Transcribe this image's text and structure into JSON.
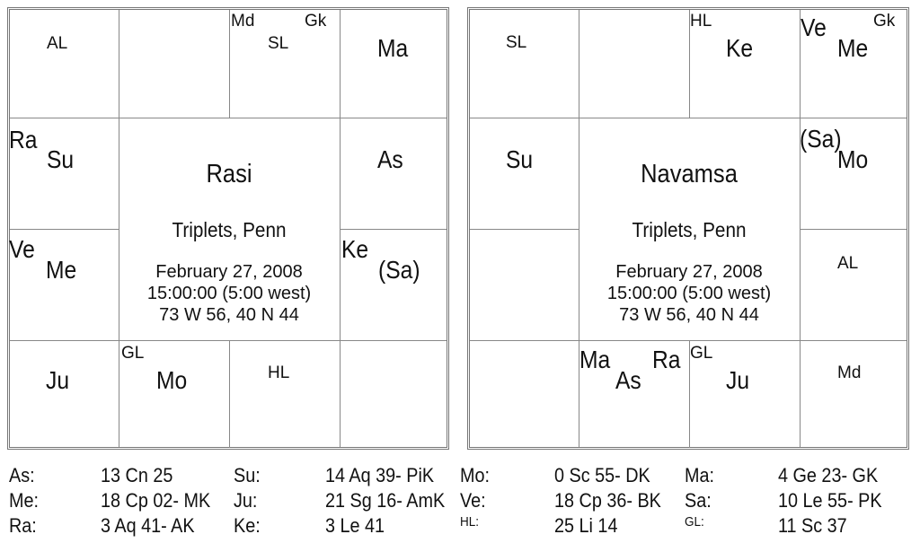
{
  "rasi": {
    "title": "Rasi",
    "subtitle": "Triplets, Penn",
    "date": "February 27, 2008",
    "time": "15:00:00 (5:00 west)",
    "place": "73 W 56, 40 N 44",
    "items": [
      "AL",
      "Md",
      "Gk",
      "SL",
      "Ma",
      "Ra",
      "Su",
      "As",
      "Ve",
      "Me",
      "Ke",
      "(Sa)",
      "Ju",
      "GL",
      "Mo",
      "HL"
    ]
  },
  "navamsa": {
    "title": "Navamsa",
    "subtitle": "Triplets, Penn",
    "date": "February 27, 2008",
    "time": "15:00:00 (5:00 west)",
    "place": "73 W 56, 40 N 44",
    "items": [
      "SL",
      "HL",
      "Ke",
      "Ve",
      "Gk",
      "Me",
      "Su",
      "(Sa)",
      "Mo",
      "AL",
      "Ma",
      "As",
      "Ra",
      "GL",
      "Ju",
      "Md"
    ]
  },
  "positions": [
    {
      "label": "As:",
      "value": "13 Cn 25"
    },
    {
      "label": "Su:",
      "value": "14 Aq 39- PiK"
    },
    {
      "label": "Mo:",
      "value": "0 Sc 55- DK"
    },
    {
      "label": "Ma:",
      "value": "4 Ge 23- GK"
    },
    {
      "label": "Me:",
      "value": "18 Cp 02- MK"
    },
    {
      "label": "Ju:",
      "value": "21 Sg 16- AmK"
    },
    {
      "label": "Ve:",
      "value": "18 Cp 36- BK"
    },
    {
      "label": "Sa:",
      "value": "10 Le 55- PK"
    },
    {
      "label": "Ra:",
      "value": "3 Aq 41- AK"
    },
    {
      "label": "Ke:",
      "value": "3 Le 41"
    },
    {
      "label": "HL:",
      "value": "25 Li 14"
    },
    {
      "label": "GL:",
      "value": "11 Sc 37"
    }
  ]
}
